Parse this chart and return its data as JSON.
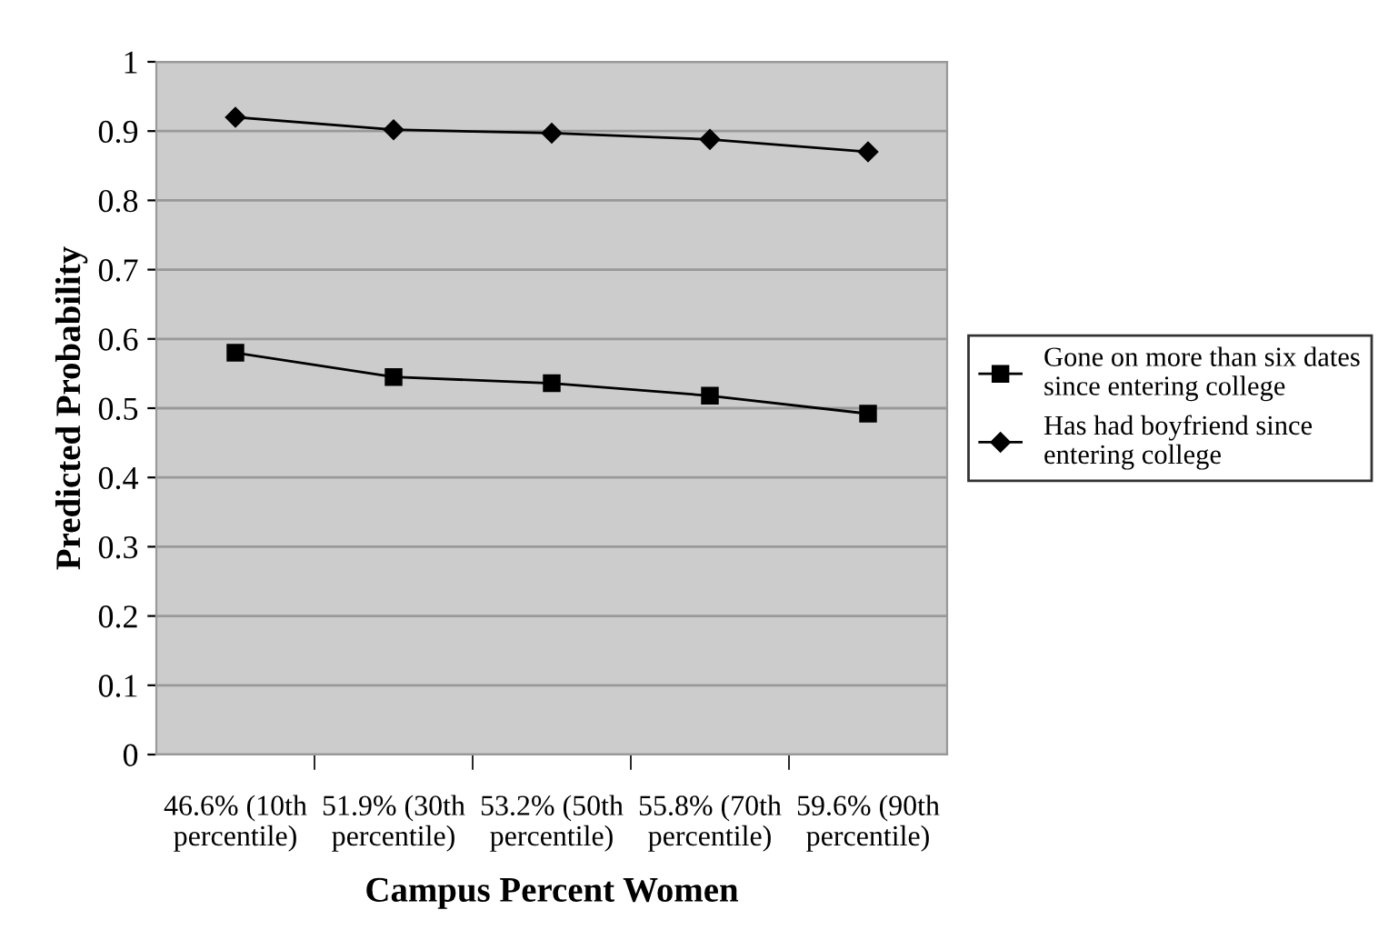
{
  "chart_data": {
    "type": "line",
    "xlabel": "Campus Percent Women",
    "ylabel": "Predicted Probability",
    "categories": [
      "46.6% (10th\npercentile)",
      "51.9% (30th\npercentile)",
      "53.2% (50th\npercentile)",
      "55.8% (70th\npercentile)",
      "59.6% (90th\npercentile)"
    ],
    "series": [
      {
        "name": "Gone on more than six dates\nsince entering college",
        "color": "#000000",
        "marker": "square",
        "values": [
          0.58,
          0.545,
          0.536,
          0.518,
          0.492
        ]
      },
      {
        "name": "Has had boyfriend since\nentering college",
        "color": "#000000",
        "marker": "diamond",
        "values": [
          0.92,
          0.902,
          0.897,
          0.888,
          0.87
        ]
      }
    ],
    "ylim": [
      0,
      1
    ],
    "yticks": [
      0,
      0.1,
      0.2,
      0.3,
      0.4,
      0.5,
      0.6,
      0.7,
      0.8,
      0.9,
      1
    ],
    "grid": "y",
    "legend": "right"
  }
}
